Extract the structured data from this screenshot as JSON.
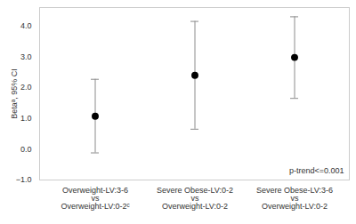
{
  "chart_data": {
    "type": "errorbar",
    "y_label": "Betaᵃ, 95% CI",
    "categories": [
      "Overweight-LV:3-6\nvs\nOverweight-LV:0-2ᶜ",
      "Severe Obese-LV:0-2\nvs\nOverweight-LV:0-2",
      "Severe Obese-LV:3-6\nvs\nOverweight-LV:0-2"
    ],
    "values": [
      1.07,
      2.4,
      2.98
    ],
    "ci_lower": [
      -0.12,
      0.65,
      1.65
    ],
    "ci_upper": [
      2.27,
      4.15,
      4.3
    ],
    "color": "#000000",
    "annotation": "p-trend<=0.001",
    "ylim": [
      -1,
      4.6
    ],
    "yticks": [
      -1,
      0,
      1,
      2,
      3,
      4
    ],
    "grid": false
  }
}
